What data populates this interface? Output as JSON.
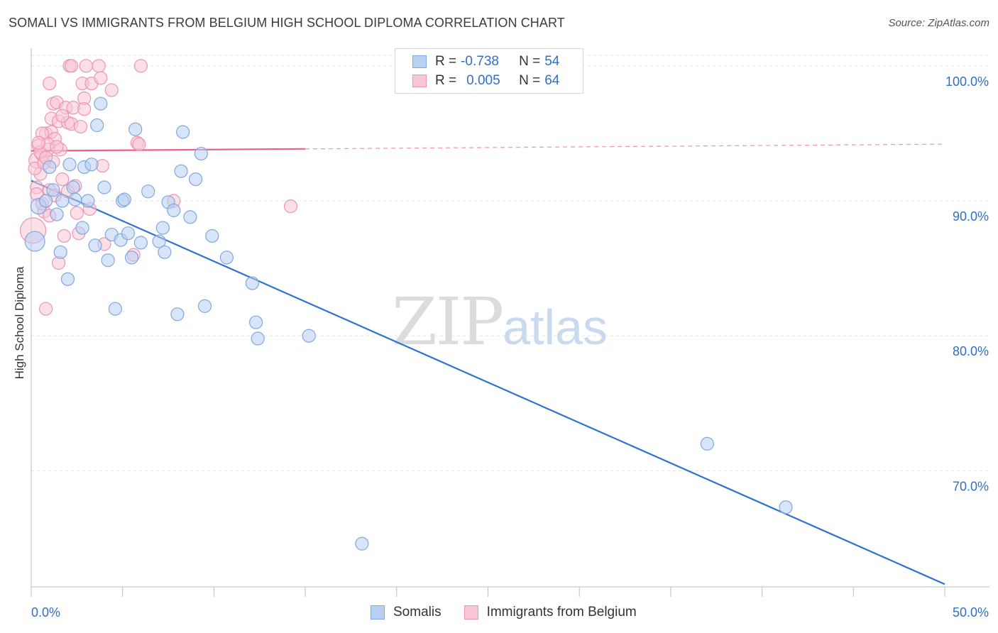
{
  "title": "SOMALI VS IMMIGRANTS FROM BELGIUM HIGH SCHOOL DIPLOMA CORRELATION CHART",
  "source": "Source: ZipAtlas.com",
  "watermark": {
    "zip": "ZIP",
    "atlas": "atlas"
  },
  "legend": {
    "rows": [
      {
        "r_label": "R = ",
        "r_value": "-0.738",
        "n_label": "N = ",
        "n_value": "54"
      },
      {
        "r_label": "R = ",
        "r_value": "0.005",
        "n_label": "N = ",
        "n_value": "64"
      }
    ]
  },
  "colors": {
    "somali_fill": "#b8d0f2",
    "somali_stroke": "#7fa8de",
    "somali_line": "#2d72d2",
    "belgium_fill": "#f8c6d6",
    "belgium_stroke": "#ee93b3",
    "belgium_line": "#e8628f",
    "tick_label": "#2f6fc4",
    "grid": "#e3e3e3"
  },
  "chart_data": {
    "type": "scatter",
    "title": "SOMALI VS IMMIGRANTS FROM BELGIUM HIGH SCHOOL DIPLOMA CORRELATION CHART",
    "xlabel": "",
    "ylabel": "High School Diploma",
    "xlim": [
      0,
      50
    ],
    "ylim": [
      61.4,
      101.2
    ],
    "x_tick_labels": [
      "0.0%",
      "50.0%"
    ],
    "y_ticks": [
      70,
      80,
      90,
      100
    ],
    "y_tick_labels": [
      "70.0%",
      "80.0%",
      "90.0%",
      "100.0%"
    ],
    "series": [
      {
        "name": "Somalis",
        "stats": {
          "R": -0.738,
          "N": 54
        },
        "trend": {
          "x": [
            0,
            50
          ],
          "y": [
            91.5,
            61.6
          ],
          "dashed_from": null
        },
        "points": [
          [
            0.2,
            87.0,
            14
          ],
          [
            0.4,
            89.6,
            11
          ],
          [
            0.8,
            90.0,
            9
          ],
          [
            1.0,
            92.5,
            9
          ],
          [
            1.2,
            90.8,
            9
          ],
          [
            1.4,
            89.0,
            9
          ],
          [
            1.6,
            86.2,
            9
          ],
          [
            1.7,
            90.0,
            9
          ],
          [
            2.0,
            84.2,
            9
          ],
          [
            2.1,
            92.7,
            9
          ],
          [
            2.3,
            91.0,
            9
          ],
          [
            2.4,
            90.1,
            9
          ],
          [
            2.8,
            88.0,
            9
          ],
          [
            2.9,
            92.5,
            9
          ],
          [
            3.1,
            90.0,
            9
          ],
          [
            3.3,
            92.7,
            9
          ],
          [
            3.5,
            86.7,
            9
          ],
          [
            3.6,
            95.6,
            9
          ],
          [
            3.8,
            97.2,
            9
          ],
          [
            4.0,
            91.0,
            9
          ],
          [
            4.2,
            85.6,
            9
          ],
          [
            4.4,
            87.5,
            9
          ],
          [
            4.6,
            82.0,
            9
          ],
          [
            4.9,
            87.1,
            9
          ],
          [
            5.0,
            90.0,
            9
          ],
          [
            5.1,
            90.1,
            9
          ],
          [
            5.3,
            87.6,
            9
          ],
          [
            5.5,
            85.8,
            9
          ],
          [
            5.7,
            95.3,
            9
          ],
          [
            6.0,
            86.9,
            9
          ],
          [
            6.4,
            90.7,
            9
          ],
          [
            7.0,
            87.0,
            9
          ],
          [
            7.2,
            88.0,
            9
          ],
          [
            7.3,
            86.2,
            9
          ],
          [
            7.5,
            89.9,
            9
          ],
          [
            7.8,
            89.3,
            9
          ],
          [
            8.0,
            81.6,
            9
          ],
          [
            8.2,
            92.2,
            9
          ],
          [
            8.3,
            95.1,
            9
          ],
          [
            8.7,
            88.8,
            9
          ],
          [
            9.0,
            91.6,
            9
          ],
          [
            9.3,
            93.5,
            9
          ],
          [
            9.5,
            82.2,
            9
          ],
          [
            9.9,
            87.4,
            9
          ],
          [
            10.7,
            85.8,
            9
          ],
          [
            12.1,
            83.9,
            9
          ],
          [
            12.3,
            81.0,
            9
          ],
          [
            12.4,
            79.8,
            9
          ],
          [
            15.2,
            80.0,
            9
          ],
          [
            18.1,
            64.6,
            9
          ],
          [
            37.0,
            72.0,
            9
          ],
          [
            41.3,
            67.3,
            9
          ]
        ]
      },
      {
        "name": "Immigrants from Belgium",
        "stats": {
          "R": 0.005,
          "N": 64
        },
        "trend": {
          "x": [
            0,
            50
          ],
          "y": [
            93.7,
            94.2
          ],
          "dashed_from": 15
        },
        "points": [
          [
            0.1,
            87.8,
            18
          ],
          [
            0.3,
            93.0,
            11
          ],
          [
            0.4,
            94.1,
            9
          ],
          [
            0.5,
            92.0,
            9
          ],
          [
            0.6,
            93.4,
            9
          ],
          [
            0.7,
            89.2,
            9
          ],
          [
            0.8,
            95.0,
            9
          ],
          [
            0.8,
            82.0,
            9
          ],
          [
            0.9,
            93.8,
            9
          ],
          [
            1.0,
            90.8,
            9
          ],
          [
            1.0,
            98.7,
            9
          ],
          [
            1.1,
            96.1,
            9
          ],
          [
            1.1,
            95.1,
            9
          ],
          [
            1.2,
            97.2,
            9
          ],
          [
            1.3,
            94.6,
            9
          ],
          [
            1.3,
            90.4,
            9
          ],
          [
            1.4,
            97.3,
            9
          ],
          [
            1.5,
            85.4,
            9
          ],
          [
            1.5,
            95.9,
            9
          ],
          [
            1.6,
            93.8,
            9
          ],
          [
            1.7,
            91.6,
            9
          ],
          [
            1.8,
            87.4,
            9
          ],
          [
            1.9,
            96.9,
            9
          ],
          [
            2.0,
            95.8,
            9
          ],
          [
            2.0,
            90.7,
            9
          ],
          [
            2.1,
            100.0,
            9
          ],
          [
            2.2,
            95.7,
            9
          ],
          [
            2.2,
            100.0,
            9
          ],
          [
            2.3,
            96.9,
            9
          ],
          [
            2.4,
            91.1,
            9
          ],
          [
            2.5,
            89.1,
            9
          ],
          [
            2.6,
            87.6,
            9
          ],
          [
            2.7,
            95.5,
            9
          ],
          [
            2.8,
            98.7,
            9
          ],
          [
            2.9,
            97.6,
            9
          ],
          [
            2.9,
            96.8,
            9
          ],
          [
            3.0,
            100.0,
            9
          ],
          [
            3.2,
            89.4,
            9
          ],
          [
            3.3,
            98.7,
            9
          ],
          [
            3.7,
            100.0,
            9
          ],
          [
            3.8,
            99.1,
            9
          ],
          [
            3.9,
            92.6,
            9
          ],
          [
            4.0,
            86.8,
            9
          ],
          [
            4.4,
            98.2,
            9
          ],
          [
            5.6,
            86.0,
            9
          ],
          [
            5.8,
            94.3,
            9
          ],
          [
            5.9,
            94.2,
            9
          ],
          [
            6.0,
            100.0,
            9
          ],
          [
            7.8,
            90.0,
            9
          ],
          [
            14.2,
            89.6,
            9
          ],
          [
            0.2,
            92.4,
            9
          ],
          [
            0.3,
            91.0,
            9
          ],
          [
            0.5,
            93.6,
            9
          ],
          [
            0.6,
            95.0,
            9
          ],
          [
            0.7,
            92.8,
            9
          ],
          [
            0.9,
            94.2,
            9
          ],
          [
            1.2,
            92.9,
            9
          ],
          [
            1.4,
            94.0,
            9
          ],
          [
            0.4,
            94.3,
            9
          ],
          [
            0.8,
            93.2,
            9
          ],
          [
            0.6,
            89.8,
            9
          ],
          [
            1.0,
            88.9,
            9
          ],
          [
            0.3,
            90.5,
            9
          ],
          [
            1.7,
            96.3,
            9
          ]
        ]
      }
    ]
  },
  "bottom_legend": [
    {
      "label": "Somalis"
    },
    {
      "label": "Immigrants from Belgium"
    }
  ]
}
